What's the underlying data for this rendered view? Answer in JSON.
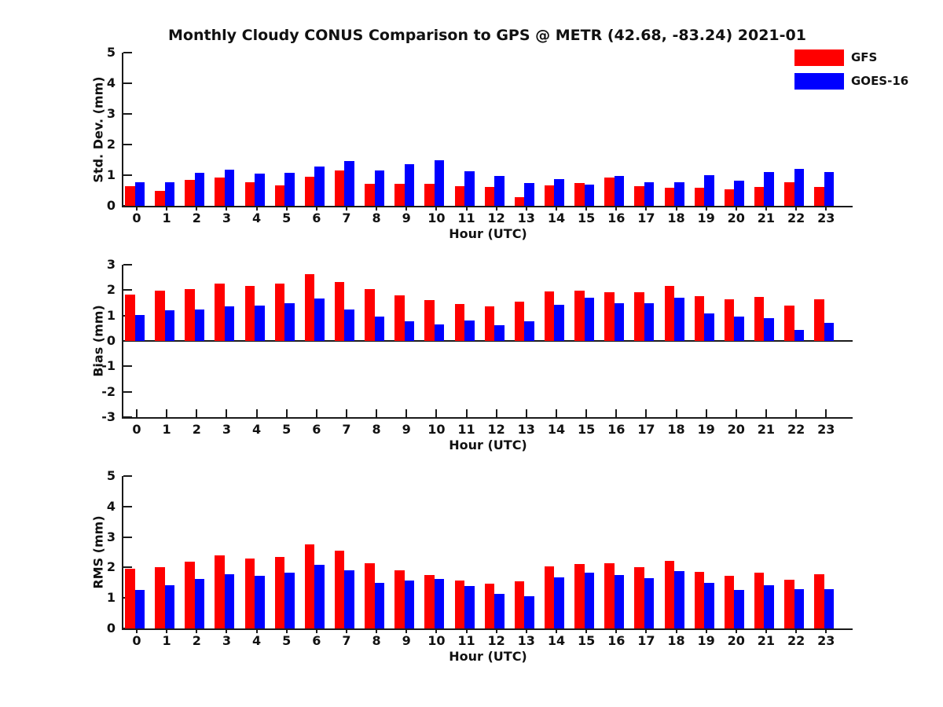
{
  "title": "Monthly Cloudy CONUS Comparison to GPS @ METR (42.68, -83.24) 2021-01",
  "legend": [
    {
      "label": "GFS",
      "color": "#ff0000"
    },
    {
      "label": "GOES-16",
      "color": "#0000ff"
    }
  ],
  "colors": {
    "gfs": "#ff0000",
    "goes16": "#0000ff",
    "axis": "#1a1a1a",
    "background": "#ffffff"
  },
  "chart_data": [
    {
      "type": "bar",
      "panel": "std-dev",
      "ylabel": "Std. Dev. (mm)",
      "xlabel": "Hour (UTC)",
      "ylim": [
        0,
        5
      ],
      "yticks": [
        0,
        1,
        2,
        3,
        4,
        5
      ],
      "grid": false,
      "legend_position": "top-right-of-figure",
      "categories": [
        "0",
        "1",
        "2",
        "3",
        "4",
        "5",
        "6",
        "7",
        "8",
        "9",
        "10",
        "11",
        "12",
        "13",
        "14",
        "15",
        "16",
        "17",
        "18",
        "19",
        "20",
        "21",
        "22",
        "23"
      ],
      "series": [
        {
          "name": "GFS",
          "color": "#ff0000",
          "values": [
            0.63,
            0.5,
            0.84,
            0.92,
            0.76,
            0.66,
            0.95,
            1.16,
            0.71,
            0.72,
            0.71,
            0.64,
            0.62,
            0.28,
            0.67,
            0.75,
            0.93,
            0.64,
            0.58,
            0.59,
            0.55,
            0.61,
            0.77,
            0.62
          ]
        },
        {
          "name": "GOES-16",
          "color": "#0000ff",
          "values": [
            0.78,
            0.78,
            1.08,
            1.18,
            1.05,
            1.08,
            1.27,
            1.46,
            1.16,
            1.37,
            1.49,
            1.13,
            0.98,
            0.75,
            0.87,
            0.68,
            0.98,
            0.78,
            0.77,
            1.0,
            0.82,
            1.1,
            1.21,
            1.1
          ]
        }
      ]
    },
    {
      "type": "bar",
      "panel": "bias",
      "ylabel": "Bias (mm)",
      "xlabel": "Hour (UTC)",
      "ylim": [
        -3,
        3
      ],
      "yticks": [
        -3,
        -2,
        -1,
        0,
        1,
        2,
        3
      ],
      "grid": false,
      "categories": [
        "0",
        "1",
        "2",
        "3",
        "4",
        "5",
        "6",
        "7",
        "8",
        "9",
        "10",
        "11",
        "12",
        "13",
        "14",
        "15",
        "16",
        "17",
        "18",
        "19",
        "20",
        "21",
        "22",
        "23"
      ],
      "series": [
        {
          "name": "GFS",
          "color": "#ff0000",
          "values": [
            1.84,
            1.97,
            2.03,
            2.26,
            2.18,
            2.27,
            2.62,
            2.32,
            2.03,
            1.79,
            1.62,
            1.44,
            1.35,
            1.55,
            1.95,
            1.98,
            1.93,
            1.92,
            2.15,
            1.77,
            1.64,
            1.73,
            1.39,
            1.65
          ]
        },
        {
          "name": "GOES-16",
          "color": "#0000ff",
          "values": [
            1.02,
            1.2,
            1.24,
            1.36,
            1.38,
            1.47,
            1.68,
            1.24,
            0.95,
            0.77,
            0.65,
            0.8,
            0.61,
            0.77,
            1.41,
            1.7,
            1.47,
            1.5,
            1.71,
            1.09,
            0.97,
            0.9,
            0.44,
            0.7
          ]
        }
      ]
    },
    {
      "type": "bar",
      "panel": "rms",
      "ylabel": "RMS (mm)",
      "xlabel": "Hour (UTC)",
      "ylim": [
        0,
        5
      ],
      "yticks": [
        0,
        1,
        2,
        3,
        4,
        5
      ],
      "grid": false,
      "categories": [
        "0",
        "1",
        "2",
        "3",
        "4",
        "5",
        "6",
        "7",
        "8",
        "9",
        "10",
        "11",
        "12",
        "13",
        "14",
        "15",
        "16",
        "17",
        "18",
        "19",
        "20",
        "21",
        "22",
        "23"
      ],
      "series": [
        {
          "name": "GFS",
          "color": "#ff0000",
          "values": [
            1.95,
            2.01,
            2.19,
            2.39,
            2.29,
            2.35,
            2.75,
            2.56,
            2.14,
            1.92,
            1.76,
            1.57,
            1.47,
            1.54,
            2.03,
            2.11,
            2.14,
            2.02,
            2.22,
            1.85,
            1.72,
            1.82,
            1.6,
            1.78
          ]
        },
        {
          "name": "GOES-16",
          "color": "#0000ff",
          "values": [
            1.26,
            1.42,
            1.63,
            1.79,
            1.72,
            1.84,
            2.08,
            1.91,
            1.5,
            1.57,
            1.62,
            1.4,
            1.13,
            1.05,
            1.67,
            1.83,
            1.76,
            1.66,
            1.87,
            1.5,
            1.27,
            1.41,
            1.29,
            1.29
          ]
        }
      ]
    }
  ]
}
